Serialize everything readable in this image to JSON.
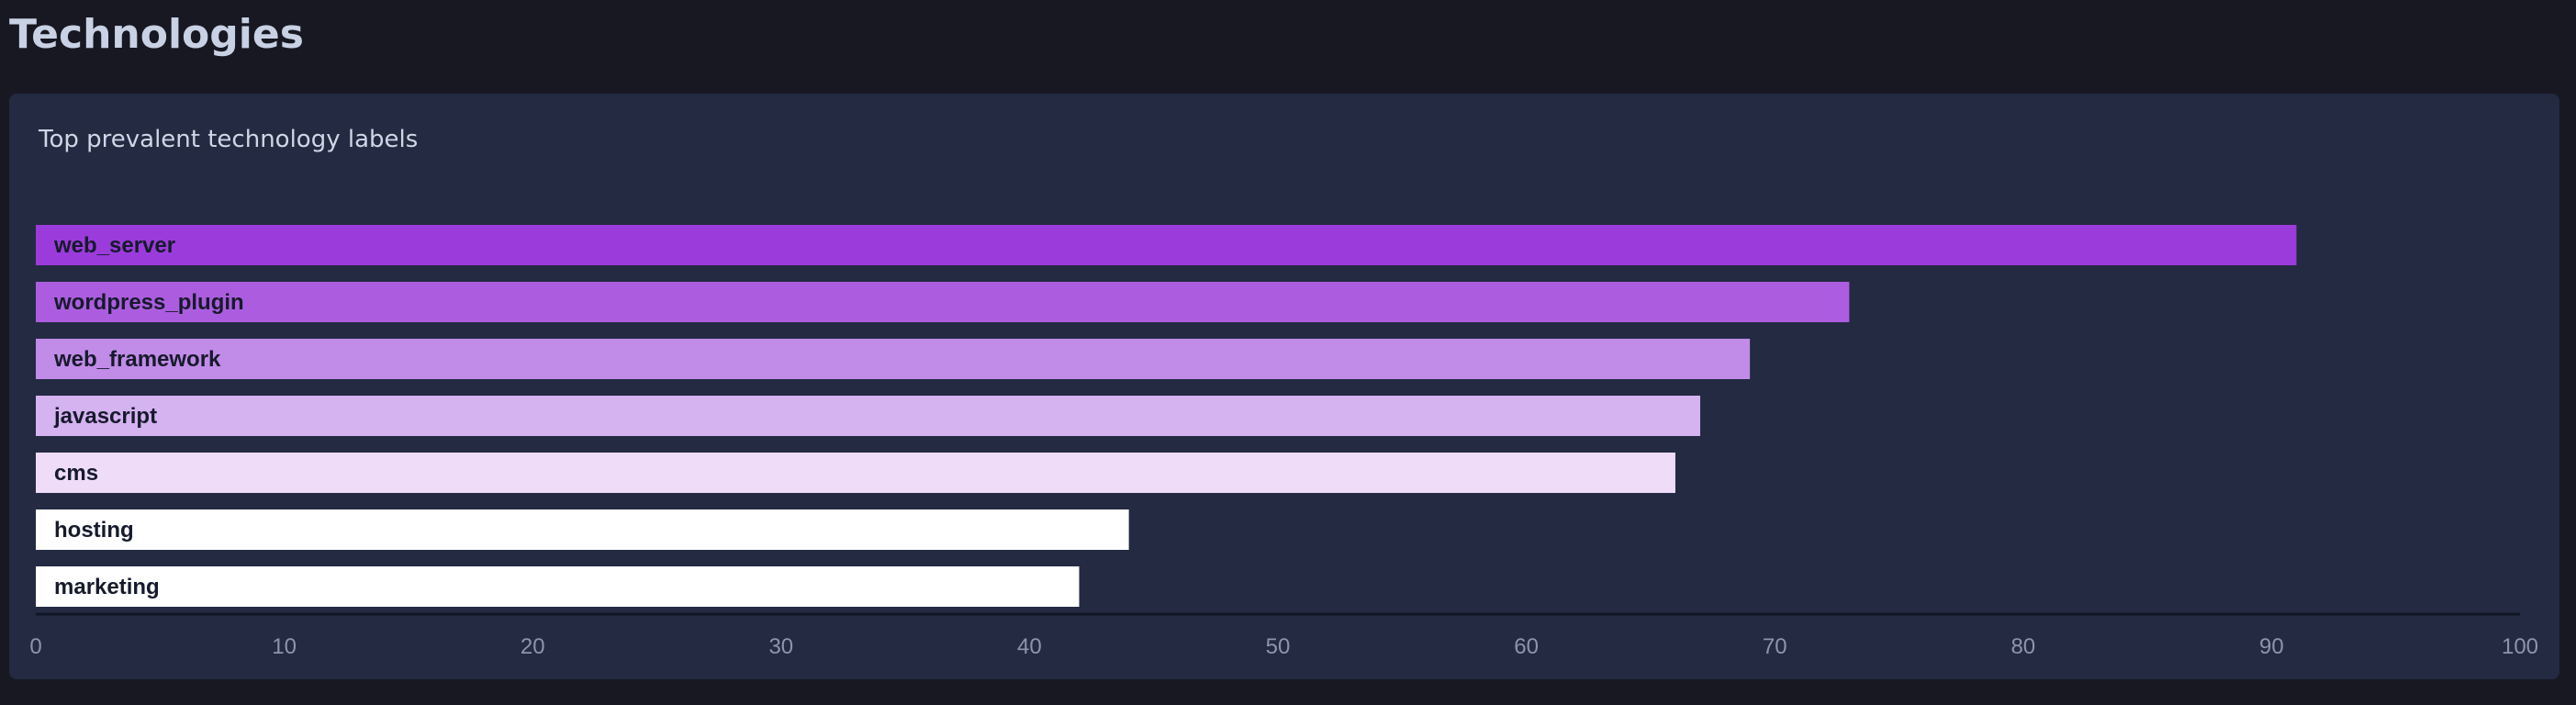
{
  "page": {
    "title": "Technologies"
  },
  "panel": {
    "title": "Top prevalent technology labels"
  },
  "chart_data": {
    "type": "bar",
    "orientation": "horizontal",
    "categories": [
      "web_server",
      "wordpress_plugin",
      "web_framework",
      "javascript",
      "cms",
      "hosting",
      "marketing"
    ],
    "values": [
      91,
      73,
      69,
      67,
      66,
      44,
      42
    ],
    "xlim": [
      0,
      100
    ],
    "x_ticks": [
      0,
      10,
      20,
      30,
      40,
      50,
      60,
      70,
      80,
      90,
      100
    ],
    "bar_colors": [
      "#9b3bdb",
      "#ac5ddf",
      "#c18be8",
      "#d5b2f0",
      "#eedcf8",
      "#ffffff",
      "#ffffff"
    ],
    "label_color": "#161a2c",
    "grid": false,
    "legend": "none"
  }
}
